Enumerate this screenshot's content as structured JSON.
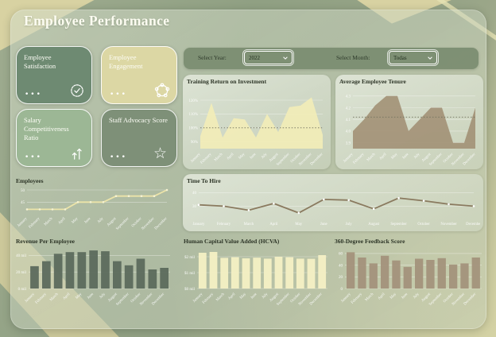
{
  "header": {
    "title": "Employee Performance"
  },
  "ui": {
    "card_menu": "•••"
  },
  "filters": {
    "year_label": "Select Year:",
    "year_value": "2022",
    "month_label": "Select Month:",
    "month_value": "Todas"
  },
  "kpi_cards": [
    {
      "label": "Employee Satisfaction",
      "icon": "badge-check",
      "color": "#6e8a72"
    },
    {
      "label": "Employee Engagement",
      "icon": "user-group",
      "color": "#dcd7a4"
    },
    {
      "label": "Salary Competitiveness Ratio",
      "icon": "arrows-up",
      "color": "#9cb795"
    },
    {
      "label": "Staff Advocacy Score",
      "icon": "star",
      "color": "#7e9078"
    }
  ],
  "months": [
    "January",
    "February",
    "March",
    "April",
    "May",
    "June",
    "July",
    "August",
    "September",
    "October",
    "November",
    "December"
  ],
  "chart_data": [
    {
      "type": "area",
      "title": "Training Return on Investment",
      "categories": [
        "January",
        "February",
        "March",
        "April",
        "May",
        "June",
        "July",
        "August",
        "September",
        "October",
        "November",
        "December"
      ],
      "values": [
        94,
        118,
        93,
        107,
        106,
        93,
        110,
        97,
        115,
        116,
        122,
        95
      ],
      "ylim": [
        85,
        128
      ],
      "yticks": [
        90,
        100,
        110,
        120
      ],
      "ytick_suffix": "%",
      "ydecimals": 0,
      "ref_line": 100,
      "fill": "#f2edb7",
      "grid": true,
      "legend": "none"
    },
    {
      "type": "area",
      "title": "Average Employee Tenure",
      "categories": [
        "January",
        "February",
        "March",
        "April",
        "May",
        "June",
        "July",
        "August",
        "September",
        "October",
        "November",
        "December"
      ],
      "values": [
        4.0,
        4.1,
        4.22,
        4.3,
        4.3,
        4.0,
        4.1,
        4.2,
        4.2,
        3.9,
        3.9,
        4.2
      ],
      "ylim": [
        3.85,
        4.36
      ],
      "yticks": [
        3.9,
        4.0,
        4.1,
        4.2,
        4.3
      ],
      "ydecimals": 1,
      "ref_line": 4.12,
      "fill": "#a39377",
      "grid": true,
      "legend": "none"
    },
    {
      "type": "line",
      "title": "Time To Hire",
      "categories": [
        "January",
        "February",
        "March",
        "April",
        "May",
        "June",
        "July",
        "August",
        "September",
        "October",
        "November",
        "December"
      ],
      "values": [
        31,
        30,
        27,
        32,
        25,
        35,
        34.5,
        28,
        36,
        34,
        31.5,
        30
      ],
      "ylim": [
        22,
        42
      ],
      "yticks": [
        30,
        40
      ],
      "ydecimals": 0,
      "stroke": "#8a7a5f",
      "marker": "#ffffff",
      "grid": true,
      "legend": "none"
    },
    {
      "type": "line",
      "title": "Employees",
      "categories": [
        "January",
        "February",
        "March",
        "April",
        "May",
        "June",
        "July",
        "August",
        "September",
        "October",
        "November",
        "December"
      ],
      "values": [
        42,
        42,
        42,
        42,
        45,
        45,
        45,
        47.5,
        47.5,
        47.5,
        47.5,
        50
      ],
      "ylim": [
        40.5,
        51
      ],
      "yticks": [
        45,
        50
      ],
      "ydecimals": 0,
      "stroke": "#ece4a9",
      "marker": "#f7f3d2",
      "grid": true,
      "legend": "none"
    },
    {
      "type": "bar",
      "title": "Revenue Per Employee",
      "categories": [
        "January",
        "February",
        "March",
        "April",
        "May",
        "June",
        "July",
        "August",
        "September",
        "October",
        "November",
        "December"
      ],
      "values": [
        27,
        33,
        42,
        44,
        44,
        46,
        45,
        33,
        28,
        36,
        23,
        25
      ],
      "ylim": [
        0,
        48
      ],
      "yticks": [
        0,
        20,
        40
      ],
      "ytick_suffix": " mil",
      "ydecimals": 0,
      "fill": "#5c6a5d",
      "grid": true,
      "legend": "none"
    },
    {
      "type": "bar",
      "title": "Human Capital Value Added (HCVA)",
      "categories": [
        "January",
        "February",
        "March",
        "April",
        "May",
        "June",
        "July",
        "August",
        "September",
        "October",
        "November",
        "December"
      ],
      "values": [
        2.25,
        2.3,
        1.93,
        1.97,
        1.9,
        1.94,
        1.88,
        2.0,
        1.97,
        1.88,
        1.87,
        2.1
      ],
      "ylim": [
        0,
        2.5
      ],
      "yticks": [
        0,
        1,
        2
      ],
      "ytick_prefix": "$",
      "ytick_suffix": " mil",
      "ydecimals": 0,
      "fill": "#f4f0c4",
      "grid": true,
      "legend": "none"
    },
    {
      "type": "bar",
      "title": "360-Degree Feedback Score",
      "categories": [
        "January",
        "February",
        "March",
        "April",
        "May",
        "June",
        "July",
        "August",
        "September",
        "October",
        "November",
        "December"
      ],
      "values": [
        62,
        53,
        43,
        56,
        48,
        37,
        51,
        49,
        52,
        41,
        43,
        53
      ],
      "ylim": [
        0,
        68
      ],
      "yticks": [
        0,
        20,
        40,
        60
      ],
      "ydecimals": 0,
      "fill": "#a3927b",
      "grid": true,
      "legend": "none"
    }
  ]
}
